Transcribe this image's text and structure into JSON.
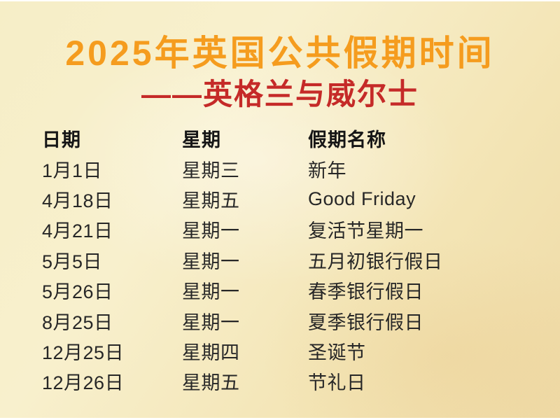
{
  "poster": {
    "title": "2025年英国公共假期时间",
    "subtitle": "——英格兰与威尔士"
  },
  "colors": {
    "title_orange": "#f59c1e",
    "subtitle_red": "#c52a28",
    "text_dark": "#272727",
    "background_cream_light": "#f8f0cd",
    "background_cream_dark": "#efdaa6"
  },
  "table": {
    "headers": [
      "日期",
      "星期",
      "假期名称"
    ],
    "rows": [
      [
        "1月1日",
        "星期三",
        "新年"
      ],
      [
        "4月18日",
        "星期五",
        "Good Friday"
      ],
      [
        "4月21日",
        "星期一",
        "复活节星期一"
      ],
      [
        "5月5日",
        "星期一",
        "五月初银行假日"
      ],
      [
        "5月26日",
        "星期一",
        "春季银行假日"
      ],
      [
        "8月25日",
        "星期一",
        "夏季银行假日"
      ],
      [
        "12月25日",
        "星期四",
        "圣诞节"
      ],
      [
        "12月26日",
        "星期五",
        "节礼日"
      ]
    ]
  }
}
